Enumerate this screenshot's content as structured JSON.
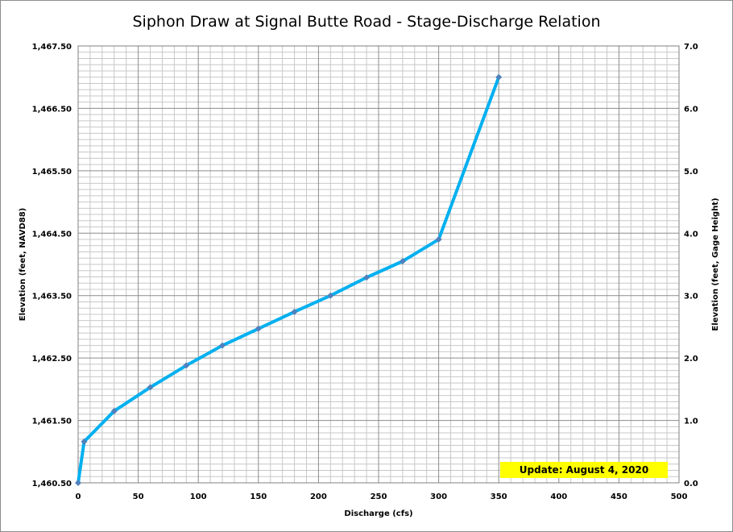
{
  "chart_data": {
    "type": "line",
    "title": "Siphon Draw at Signal Butte Road - Stage-Discharge Relation",
    "xlabel": "Discharge  (cfs)",
    "ylabel_left": "Elevation (feet, NAVD88)",
    "ylabel_right": "Elevation (feet, Gage Height)",
    "xlim": [
      0,
      500
    ],
    "ylim_left": [
      1460.5,
      1467.5
    ],
    "ylim_right": [
      0.0,
      7.0
    ],
    "x_ticks": [
      "0",
      "50",
      "100",
      "150",
      "200",
      "250",
      "300",
      "350",
      "400",
      "450",
      "500"
    ],
    "y_left_ticks": [
      "1,460.50",
      "1,461.50",
      "1,462.50",
      "1,463.50",
      "1,464.50",
      "1,465.50",
      "1,466.50",
      "1,467.50"
    ],
    "y_right_ticks": [
      "0.0",
      "1.0",
      "2.0",
      "3.0",
      "4.0",
      "5.0",
      "6.0",
      "7.0"
    ],
    "grid": true,
    "series": [
      {
        "x": [
          0,
          5,
          30,
          60,
          90,
          120,
          150,
          180,
          210,
          240,
          270,
          300,
          350
        ],
        "y": [
          0.0,
          0.66,
          1.15,
          1.53,
          1.88,
          2.2,
          2.47,
          2.74,
          3.0,
          3.29,
          3.55,
          3.9,
          6.5
        ],
        "color": "#00b0f0",
        "marker_color": "#4f81bd"
      }
    ],
    "annotation": "Update: August 4, 2020",
    "annotation_color": "#ffff00"
  }
}
